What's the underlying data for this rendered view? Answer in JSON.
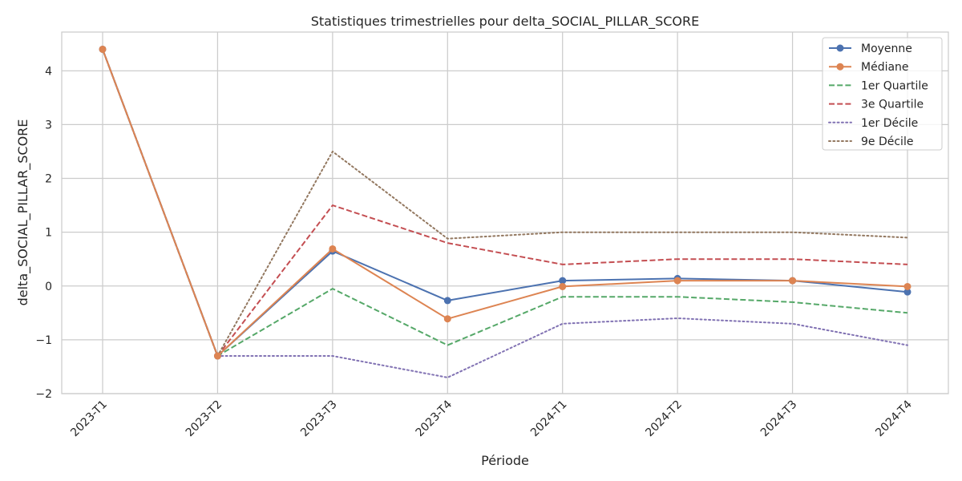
{
  "chart_data": {
    "type": "line",
    "title": "Statistiques trimestrielles pour delta_SOCIAL_PILLAR_SCORE",
    "xlabel": "Période",
    "ylabel": "delta_SOCIAL_PILLAR_SCORE",
    "categories": [
      "2023-T1",
      "2023-T2",
      "2023-T3",
      "2023-T4",
      "2024-T1",
      "2024-T2",
      "2024-T3",
      "2024-T4"
    ],
    "ylim": [
      -2,
      4.72
    ],
    "yticks": [
      -2,
      -1,
      0,
      1,
      2,
      3,
      4
    ],
    "ytick_labels": [
      "−2",
      "−1",
      "0",
      "1",
      "2",
      "3",
      "4"
    ],
    "grid": true,
    "legend_position": "top-right",
    "series": [
      {
        "name": "Moyenne",
        "color": "#4c72b0",
        "style": "solid",
        "marker": true,
        "values": [
          4.4,
          -1.3,
          0.65,
          -0.27,
          0.1,
          0.14,
          0.1,
          -0.11
        ]
      },
      {
        "name": "Médiane",
        "color": "#dd8452",
        "style": "solid",
        "marker": true,
        "values": [
          4.4,
          -1.3,
          0.69,
          -0.61,
          -0.01,
          0.1,
          0.1,
          -0.01
        ]
      },
      {
        "name": "1er Quartile",
        "color": "#55a868",
        "style": "dashed",
        "marker": false,
        "values": [
          4.4,
          -1.3,
          -0.05,
          -1.1,
          -0.2,
          -0.2,
          -0.3,
          -0.5
        ]
      },
      {
        "name": "3e Quartile",
        "color": "#c44e52",
        "style": "dashed",
        "marker": false,
        "values": [
          4.4,
          -1.3,
          1.5,
          0.8,
          0.4,
          0.5,
          0.5,
          0.4
        ]
      },
      {
        "name": "1er Décile",
        "color": "#8172b3",
        "style": "dotted",
        "marker": false,
        "values": [
          4.4,
          -1.3,
          -1.3,
          -1.7,
          -0.7,
          -0.6,
          -0.7,
          -1.1
        ]
      },
      {
        "name": "9e Décile",
        "color": "#937860",
        "style": "dotted",
        "marker": false,
        "values": [
          4.4,
          -1.3,
          2.5,
          0.88,
          1.0,
          1.0,
          1.0,
          0.9
        ]
      }
    ]
  }
}
